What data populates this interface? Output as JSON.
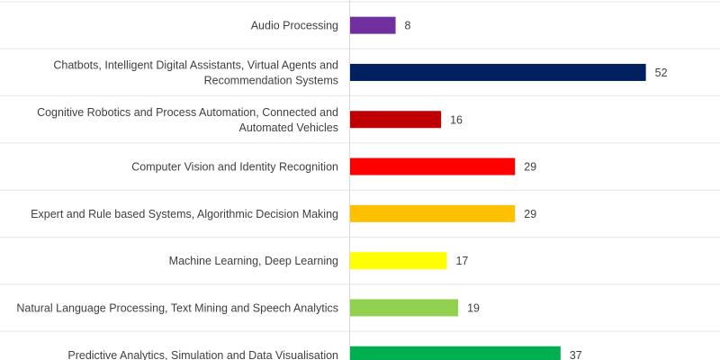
{
  "chart_data": {
    "type": "bar",
    "orientation": "horizontal",
    "categories": [
      [
        "Audio Processing"
      ],
      [
        "Chatbots, Intelligent Digital Assistants, Virtual Agents and",
        "Recommendation Systems"
      ],
      [
        "Cognitive Robotics and Process Automation, Connected and",
        "Automated Vehicles"
      ],
      [
        "Computer Vision and Identity Recognition"
      ],
      [
        "Expert and Rule based Systems, Algorithmic Decision Making"
      ],
      [
        "Machine Learning, Deep Learning"
      ],
      [
        "Natural Language Processing, Text Mining and Speech Analytics"
      ],
      [
        "Predictive Analytics, Simulation and Data Visualisation"
      ]
    ],
    "values": [
      8,
      52,
      16,
      29,
      29,
      17,
      19,
      37
    ],
    "colors": [
      "#7030a0",
      "#002060",
      "#c00000",
      "#ff0000",
      "#ffc000",
      "#ffff00",
      "#92d050",
      "#00b050"
    ],
    "xlim": [
      0,
      60
    ],
    "grid": false,
    "legend": "none",
    "data_labels": true,
    "title": "",
    "xlabel": "",
    "ylabel": ""
  }
}
